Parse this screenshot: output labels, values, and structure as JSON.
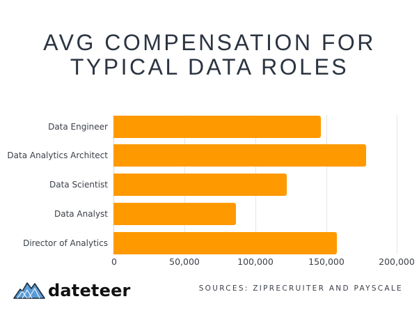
{
  "title_line1": "AVG COMPENSATION FOR",
  "title_line2": "TYPICAL DATA ROLES",
  "chart_data": {
    "type": "bar",
    "orientation": "horizontal",
    "title": "AVG COMPENSATION FOR TYPICAL DATA ROLES",
    "categories": [
      "Data Engineer",
      "Data Analytics Architect",
      "Data Scientist",
      "Data Analyst",
      "Director of Analytics"
    ],
    "values": [
      146500,
      178400,
      122500,
      86400,
      157800
    ],
    "xlabel": "",
    "ylabel": "",
    "xlim": [
      0,
      200000
    ],
    "xticks": [
      "0",
      "50,000",
      "100,000",
      "150,000",
      "200,000"
    ],
    "grid": true,
    "legend": null,
    "bar_color": "#ff9900"
  },
  "branding": {
    "logo_text": "dateteer",
    "logo_icon": "mountain-logo-icon"
  },
  "footer": {
    "sources": "SOURCES: ZIPRECRUITER AND PAYSCALE"
  },
  "colors": {
    "bar": "#ff9900",
    "title": "#2b3440",
    "logo_blue": "#5b9bd5"
  }
}
